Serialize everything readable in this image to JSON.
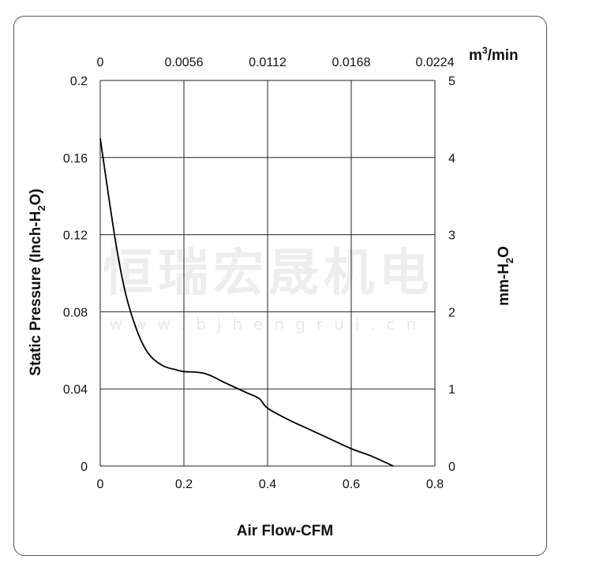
{
  "chart_data": {
    "type": "line",
    "xlabel": "Air Flow-CFM",
    "ylabel_left": {
      "main": "Static Pressure (Inch-H",
      "sub": "2",
      "end": "O)"
    },
    "ylabel_right": {
      "main": "mm-H",
      "sub": "2",
      "end": "O"
    },
    "x2label": {
      "main": "m",
      "sup": "3",
      "end": "/min"
    },
    "xlim": [
      0,
      0.8
    ],
    "ylim": [
      0,
      0.2
    ],
    "y2lim": [
      0,
      5
    ],
    "x_ticks": [
      "0",
      "0.2",
      "0.4",
      "0.6",
      "0.8"
    ],
    "x2_ticks": [
      "0",
      "0.0056",
      "0.0112",
      "0.0168",
      "0.0224"
    ],
    "y_ticks": [
      "0",
      "0.04",
      "0.08",
      "0.12",
      "0.16",
      "0.2"
    ],
    "y2_ticks": [
      "0",
      "1",
      "2",
      "3",
      "4",
      "5"
    ],
    "grid": true,
    "series": [
      {
        "color": "#000000",
        "x": [
          0,
          0.02,
          0.04,
          0.06,
          0.08,
          0.1,
          0.12,
          0.15,
          0.18,
          0.2,
          0.25,
          0.3,
          0.35,
          0.38,
          0.4,
          0.45,
          0.5,
          0.55,
          0.6,
          0.65,
          0.7
        ],
        "y": [
          0.17,
          0.14,
          0.112,
          0.09,
          0.075,
          0.064,
          0.057,
          0.052,
          0.05,
          0.049,
          0.048,
          0.043,
          0.038,
          0.035,
          0.03,
          0.024,
          0.019,
          0.014,
          0.009,
          0.005,
          0.0
        ]
      }
    ]
  },
  "watermark": {
    "text_cn": "恒瑞宏晟机电",
    "url": "www.bjhengrui.cn"
  }
}
